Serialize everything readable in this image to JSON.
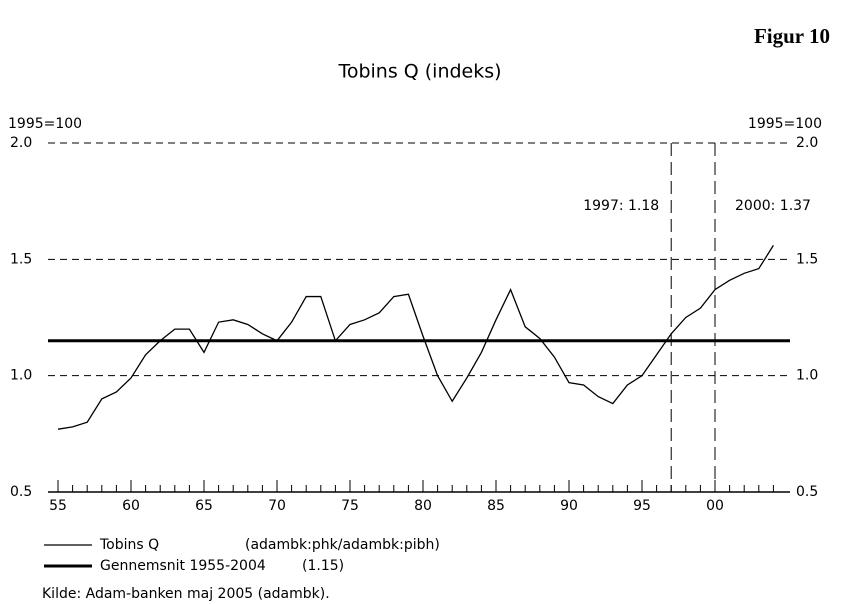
{
  "figure_label": "Figur 10",
  "chart_data": {
    "type": "line",
    "title": "Tobins Q (indeks)",
    "ylabel": "1995=100",
    "y2label": "1995=100",
    "x": [
      1955,
      1956,
      1957,
      1958,
      1959,
      1960,
      1961,
      1962,
      1963,
      1964,
      1965,
      1966,
      1967,
      1968,
      1969,
      1970,
      1971,
      1972,
      1973,
      1974,
      1975,
      1976,
      1977,
      1978,
      1979,
      1980,
      1981,
      1982,
      1983,
      1984,
      1985,
      1986,
      1987,
      1988,
      1989,
      1990,
      1991,
      1992,
      1993,
      1994,
      1995,
      1996,
      1997,
      1998,
      1999,
      2000,
      2001,
      2002,
      2003,
      2004
    ],
    "series": [
      {
        "name": "Tobins Q",
        "code": "(adambk:phk/adambk:pibh)",
        "color": "#000000",
        "values": [
          0.77,
          0.78,
          0.8,
          0.9,
          0.93,
          0.99,
          1.09,
          1.15,
          1.2,
          1.2,
          1.1,
          1.23,
          1.24,
          1.22,
          1.18,
          1.15,
          1.23,
          1.34,
          1.34,
          1.15,
          1.22,
          1.24,
          1.27,
          1.34,
          1.35,
          1.17,
          1.0,
          0.89,
          0.99,
          1.1,
          1.24,
          1.37,
          1.21,
          1.16,
          1.08,
          0.97,
          0.96,
          0.91,
          0.88,
          0.96,
          1.0,
          1.09,
          1.18,
          1.25,
          1.29,
          1.37,
          1.41,
          1.44,
          1.46,
          1.56
        ]
      }
    ],
    "hline": {
      "name": "Gennemsnit 1955-2004",
      "value": 1.15,
      "value_label": "(1.15)",
      "color": "#000000"
    },
    "annotations": [
      {
        "x": 1997,
        "label": "1997: 1.18"
      },
      {
        "x": 2000,
        "label": "2000: 1.37"
      }
    ],
    "xlim": [
      1955,
      2005
    ],
    "xticks": [
      {
        "value": 1955,
        "label": "55"
      },
      {
        "value": 1960,
        "label": "60"
      },
      {
        "value": 1965,
        "label": "65"
      },
      {
        "value": 1970,
        "label": "70"
      },
      {
        "value": 1975,
        "label": "75"
      },
      {
        "value": 1980,
        "label": "80"
      },
      {
        "value": 1985,
        "label": "85"
      },
      {
        "value": 1990,
        "label": "90"
      },
      {
        "value": 1995,
        "label": "95"
      },
      {
        "value": 2000,
        "label": "00"
      }
    ],
    "ylim": [
      0.5,
      2.0
    ],
    "yticks": [
      {
        "value": 0.5,
        "label": "0.5"
      },
      {
        "value": 1.0,
        "label": "1.0"
      },
      {
        "value": 1.5,
        "label": "1.5"
      },
      {
        "value": 2.0,
        "label": "2.0"
      }
    ],
    "grid": true,
    "source": "Kilde: Adam-banken maj 2005 (adambk)."
  }
}
